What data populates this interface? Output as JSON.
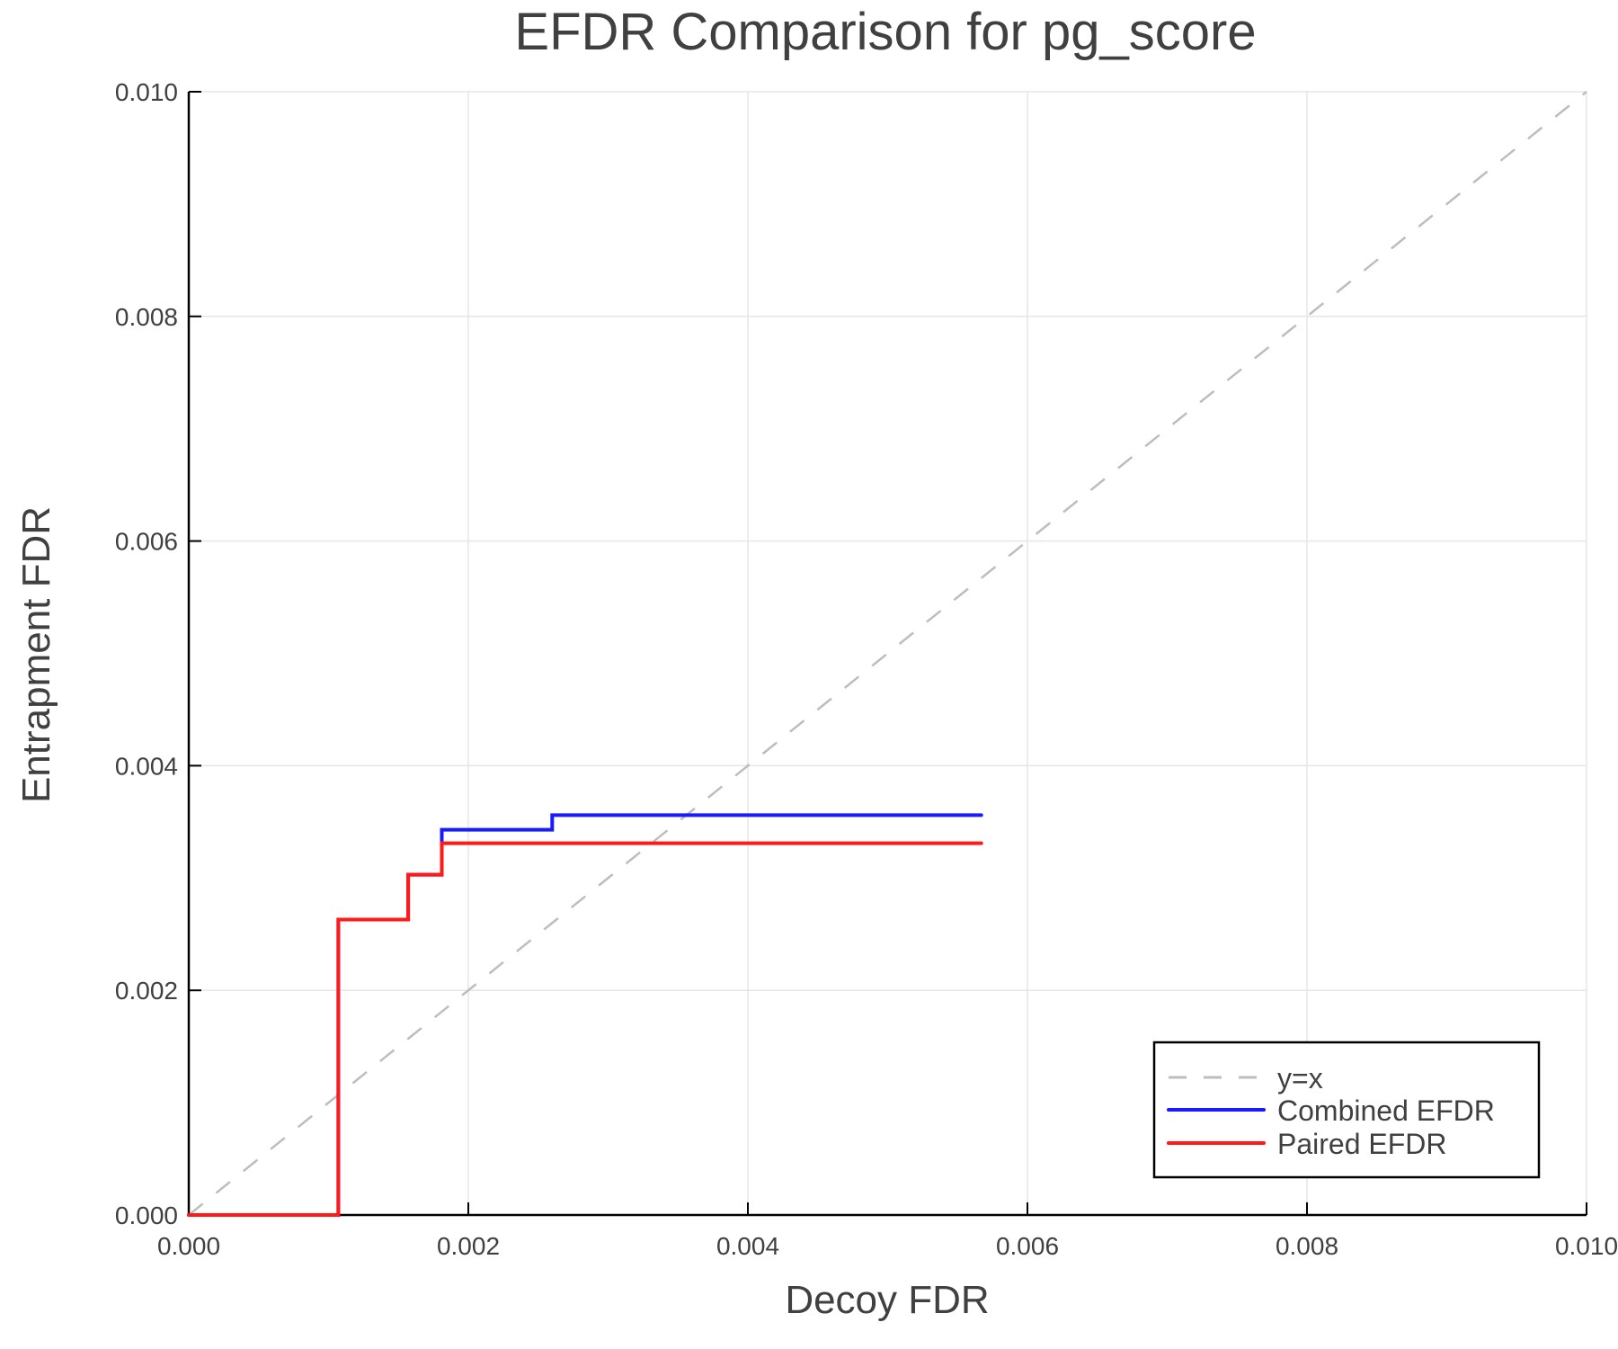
{
  "chart_data": {
    "type": "line",
    "title": "EFDR Comparison for pg_score",
    "xlabel": "Decoy FDR",
    "ylabel": "Entrapment FDR",
    "xlim": [
      0,
      0.01
    ],
    "ylim": [
      0,
      0.01
    ],
    "x_ticks": [
      "0.000",
      "0.002",
      "0.004",
      "0.006",
      "0.008",
      "0.010"
    ],
    "y_ticks": [
      "0.000",
      "0.002",
      "0.004",
      "0.006",
      "0.008",
      "0.010"
    ],
    "grid": true,
    "legend_position": "lower right",
    "series": [
      {
        "name": "y=x",
        "style": "dashed",
        "color": "#bdbdbd",
        "x": [
          0,
          0.01
        ],
        "y": [
          0,
          0.01
        ]
      },
      {
        "name": "Combined EFDR",
        "style": "step",
        "color": "#1a1aff",
        "x": [
          0,
          0.00107,
          0.00107,
          0.00157,
          0.00157,
          0.00181,
          0.00181,
          0.0026,
          0.0026,
          0.00567
        ],
        "y": [
          0,
          0,
          0.00263,
          0.00263,
          0.00303,
          0.00303,
          0.00343,
          0.00343,
          0.00356,
          0.00356
        ]
      },
      {
        "name": "Paired EFDR",
        "style": "step",
        "color": "#ff1a1a",
        "x": [
          0,
          0.00107,
          0.00107,
          0.00157,
          0.00157,
          0.00181,
          0.00181,
          0.00567
        ],
        "y": [
          0,
          0,
          0.00263,
          0.00263,
          0.00303,
          0.00303,
          0.00331,
          0.00331
        ]
      }
    ]
  },
  "legend": {
    "items": [
      {
        "label": "y=x"
      },
      {
        "label": "Combined EFDR"
      },
      {
        "label": "Paired EFDR"
      }
    ]
  }
}
